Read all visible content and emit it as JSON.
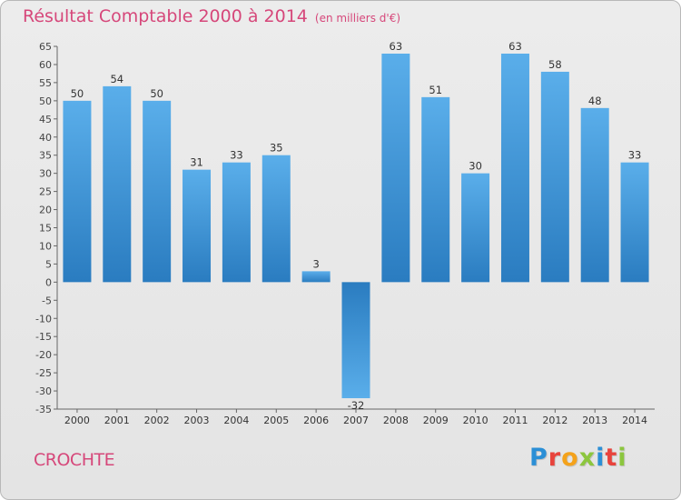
{
  "title": "Résultat Comptable 2000 à 2014",
  "subtitle": "(en milliers d'€)",
  "commune": "CROCHTE",
  "logo": {
    "text": "Proxiti",
    "colors": [
      "#2b8fd6",
      "#e8433c",
      "#f4a21b",
      "#8cc63e",
      "#2b8fd6",
      "#e8433c",
      "#8cc63e"
    ]
  },
  "colors": {
    "bar_light": "#5aaeea",
    "bar_dark": "#2a7cc0",
    "title": "#d6477a"
  },
  "chart_data": {
    "type": "bar",
    "title": "Résultat Comptable 2000 à 2014",
    "subtitle": "(en milliers d'€)",
    "xlabel": "",
    "ylabel": "",
    "categories": [
      "2000",
      "2001",
      "2002",
      "2003",
      "2004",
      "2005",
      "2006",
      "2007",
      "2008",
      "2009",
      "2010",
      "2011",
      "2012",
      "2013",
      "2014"
    ],
    "values": [
      50,
      54,
      50,
      31,
      33,
      35,
      3,
      -32,
      63,
      51,
      30,
      63,
      58,
      48,
      33
    ],
    "ylim": [
      -35,
      65
    ],
    "ytick_step": 5,
    "grid": false,
    "legend": "none"
  }
}
